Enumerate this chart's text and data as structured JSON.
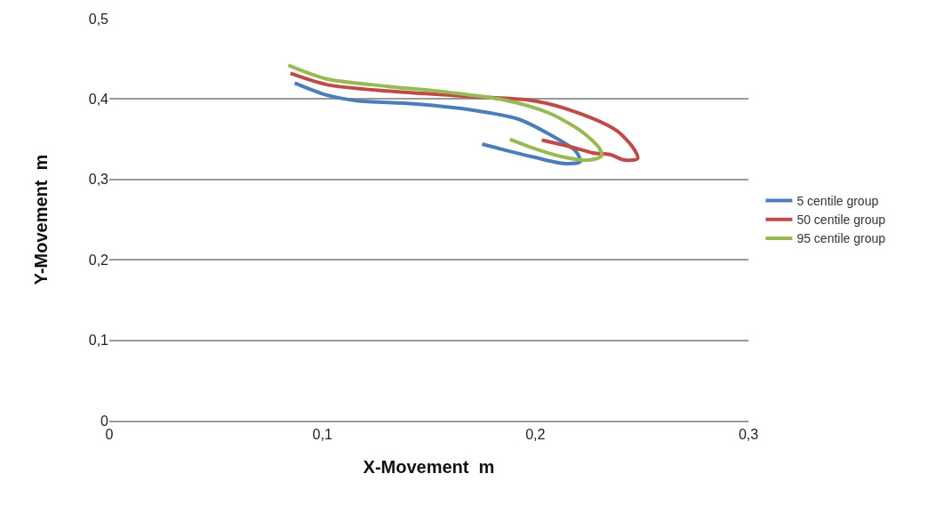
{
  "chart_data": {
    "type": "line",
    "xlabel": "X-Movement  m",
    "ylabel": "Y-Movement  m",
    "xlim": [
      0,
      0.3
    ],
    "xticks": [
      {
        "value": 0,
        "label": "0"
      },
      {
        "value": 0.1,
        "label": "0,1"
      },
      {
        "value": 0.2,
        "label": "0,2"
      },
      {
        "value": 0.3,
        "label": "0,3"
      }
    ],
    "ylim": [
      0,
      0.5
    ],
    "yticks": [
      {
        "value": 0,
        "label": "0"
      },
      {
        "value": 0.1,
        "label": "0,1"
      },
      {
        "value": 0.2,
        "label": "0,2"
      },
      {
        "value": 0.3,
        "label": "0,3"
      },
      {
        "value": 0.4,
        "label": "0,4"
      },
      {
        "value": 0.5,
        "label": "0,5"
      }
    ],
    "grid": "y",
    "legend": "right",
    "marker": "none",
    "line_style": "solid",
    "series": [
      {
        "name": "5 centile group",
        "color": "#4a7ebb",
        "x": [
          0.087,
          0.102,
          0.116,
          0.143,
          0.171,
          0.192,
          0.206,
          0.219,
          0.221,
          0.213,
          0.199,
          0.185,
          0.175
        ],
        "values": [
          0.42,
          0.405,
          0.398,
          0.394,
          0.386,
          0.375,
          0.357,
          0.335,
          0.322,
          0.32,
          0.328,
          0.337,
          0.344
        ]
      },
      {
        "name": "50 centile group",
        "color": "#be4b48",
        "x": [
          0.085,
          0.102,
          0.13,
          0.171,
          0.199,
          0.22,
          0.238,
          0.246,
          0.248,
          0.242,
          0.235,
          0.227,
          0.216,
          0.203
        ],
        "values": [
          0.432,
          0.418,
          0.41,
          0.403,
          0.398,
          0.383,
          0.361,
          0.339,
          0.326,
          0.324,
          0.331,
          0.333,
          0.341,
          0.349
        ]
      },
      {
        "name": "95 centile group",
        "color": "#98b954",
        "x": [
          0.084,
          0.102,
          0.13,
          0.157,
          0.185,
          0.206,
          0.221,
          0.23,
          0.231,
          0.225,
          0.213,
          0.199,
          0.188
        ],
        "values": [
          0.442,
          0.425,
          0.416,
          0.409,
          0.399,
          0.383,
          0.361,
          0.339,
          0.329,
          0.324,
          0.328,
          0.339,
          0.35
        ]
      }
    ]
  }
}
